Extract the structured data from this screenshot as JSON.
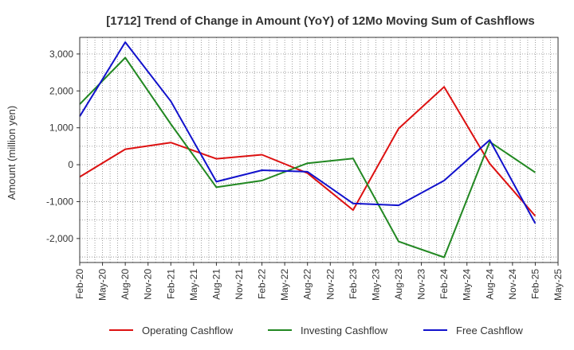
{
  "chart_data": {
    "type": "line",
    "title": "[1712]  Trend of Change in Amount (YoY) of 12Mo Moving Sum of Cashflows",
    "xlabel": "",
    "ylabel": "Amount (million yen)",
    "ylim": [
      -2650,
      3450
    ],
    "yticks": [
      3000,
      2000,
      1000,
      0,
      -1000,
      -2000
    ],
    "ytick_labels": [
      "3,000",
      "2,000",
      "1,000",
      "0",
      "-1,000",
      "-2,000"
    ],
    "categories": [
      "Feb-20",
      "May-20",
      "Aug-20",
      "Nov-20",
      "Feb-21",
      "May-21",
      "Aug-21",
      "Nov-21",
      "Feb-22",
      "May-22",
      "Aug-22",
      "Nov-22",
      "Feb-23",
      "May-23",
      "Aug-23",
      "Nov-23",
      "Feb-24",
      "May-24",
      "Aug-24",
      "Nov-24",
      "Feb-25",
      "May-25"
    ],
    "grid": true,
    "legend_position": "bottom",
    "series": [
      {
        "name": "Operating Cashflow",
        "color": "#dd1111",
        "points": [
          [
            0,
            -330
          ],
          [
            2,
            420
          ],
          [
            4,
            600
          ],
          [
            6,
            160
          ],
          [
            8,
            270
          ],
          [
            10,
            -230
          ],
          [
            12,
            -1230
          ],
          [
            14,
            980
          ],
          [
            16,
            2110
          ],
          [
            18,
            30
          ],
          [
            20,
            -1390
          ]
        ]
      },
      {
        "name": "Investing Cashflow",
        "color": "#228822",
        "points": [
          [
            0,
            1640
          ],
          [
            2,
            2900
          ],
          [
            4,
            1100
          ],
          [
            6,
            -610
          ],
          [
            8,
            -430
          ],
          [
            10,
            40
          ],
          [
            12,
            170
          ],
          [
            14,
            -2080
          ],
          [
            16,
            -2510
          ],
          [
            18,
            620
          ],
          [
            20,
            -210
          ]
        ]
      },
      {
        "name": "Free Cashflow",
        "color": "#1111cc",
        "points": [
          [
            0,
            1310
          ],
          [
            2,
            3320
          ],
          [
            4,
            1720
          ],
          [
            6,
            -460
          ],
          [
            8,
            -150
          ],
          [
            10,
            -190
          ],
          [
            12,
            -1050
          ],
          [
            14,
            -1100
          ],
          [
            16,
            -430
          ],
          [
            18,
            670
          ],
          [
            20,
            -1590
          ]
        ]
      }
    ]
  }
}
